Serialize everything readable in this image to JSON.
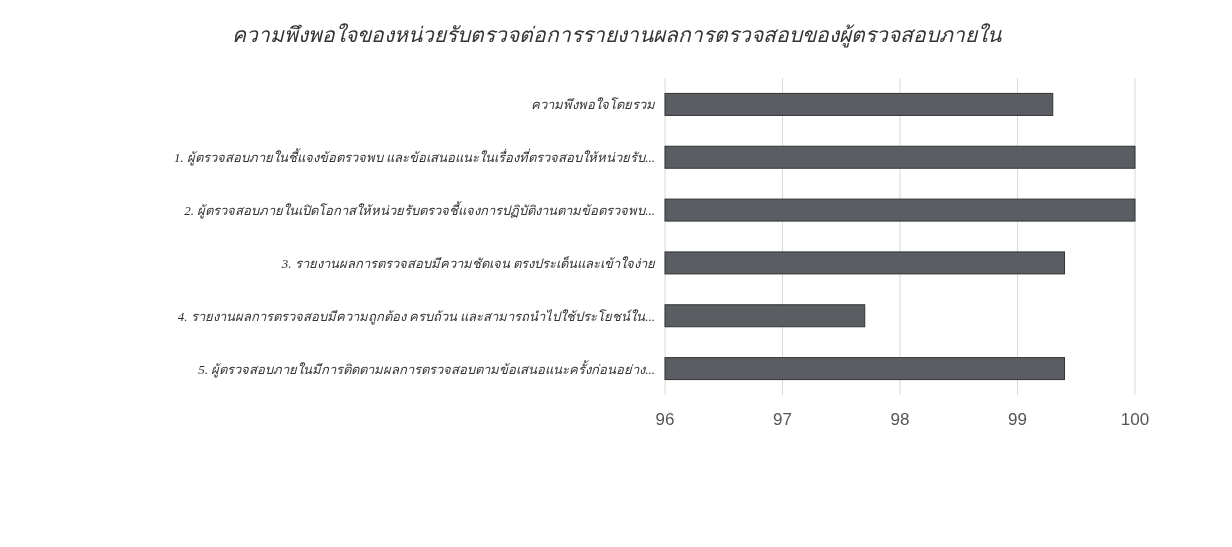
{
  "chart_data": {
    "type": "bar",
    "orientation": "horizontal",
    "title": "ความพึงพอใจของหน่วยรับตรวจต่อการรายงานผลการตรวจสอบของผู้ตรวจสอบภายใน",
    "categories": [
      "ความพึงพอใจโดยรวม",
      "1. ผู้ตรวจสอบภายในชี้แจงข้อตรวจพบ และข้อเสนอแนะในเรื่องที่ตรวจสอบให้หน่วยรับ...",
      "2. ผู้ตรวจสอบภายในเปิดโอกาสให้หน่วยรับตรวจชี้แจงการปฏิบัติงานตามข้อตรวจพบ...",
      "3. รายงานผลการตรวจสอบมีความชัดเจน ตรงประเด็นและเข้าใจง่าย",
      "4. รายงานผลการตรวจสอบมีความถูกต้อง ครบถ้วน และสามารถนำไปใช้ประโยชน์ใน...",
      "5. ผู้ตรวจสอบภายในมีการติดตามผลการตรวจสอบตามข้อเสนอแนะครั้งก่อนอย่าง..."
    ],
    "values": [
      99.3,
      100,
      100,
      99.4,
      97.7,
      99.4
    ],
    "color": "#5a5e63",
    "xlim": [
      96,
      100
    ],
    "xticks": [
      96,
      97,
      98,
      99,
      100
    ],
    "grid": "x"
  }
}
